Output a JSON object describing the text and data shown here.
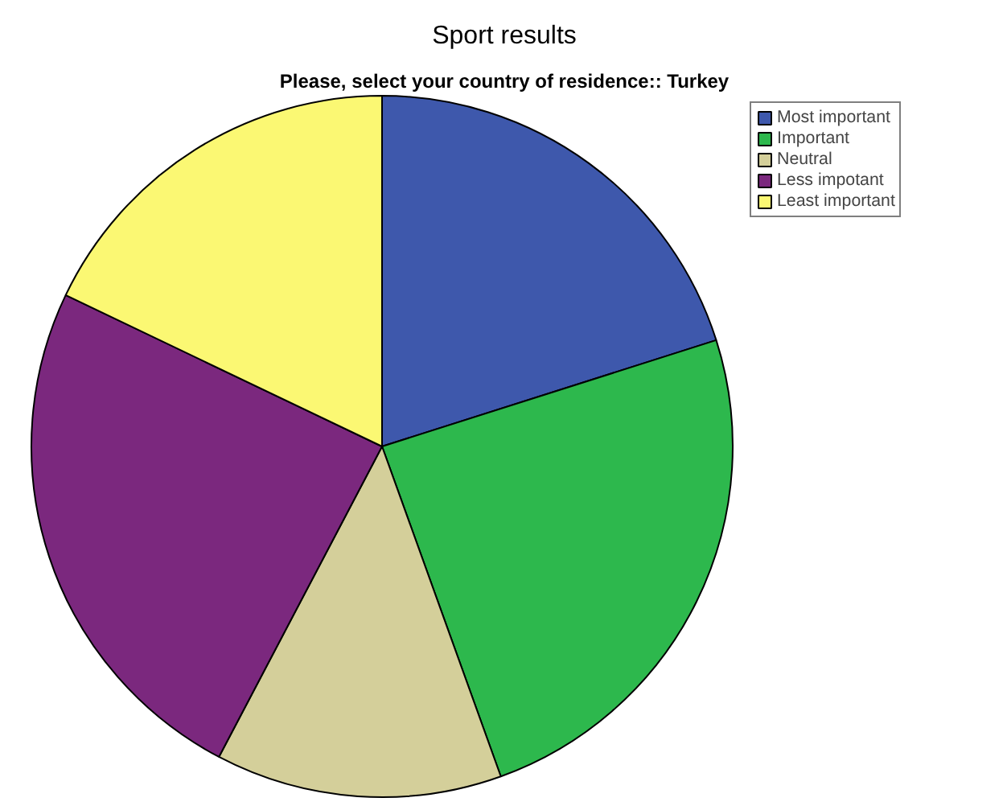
{
  "chart_data": {
    "type": "pie",
    "title": "Sport results",
    "subtitle": "Please, select your country of residence:: Turkey",
    "categories": [
      "Most important",
      "Important",
      "Neutral",
      "Less impotant",
      "Least important"
    ],
    "values": [
      20.1,
      24.4,
      13.2,
      24.4,
      17.9
    ],
    "colors": [
      "#3e58ac",
      "#2db84d",
      "#d4cf9a",
      "#7b287e",
      "#fbf873"
    ],
    "legend": "top right"
  }
}
